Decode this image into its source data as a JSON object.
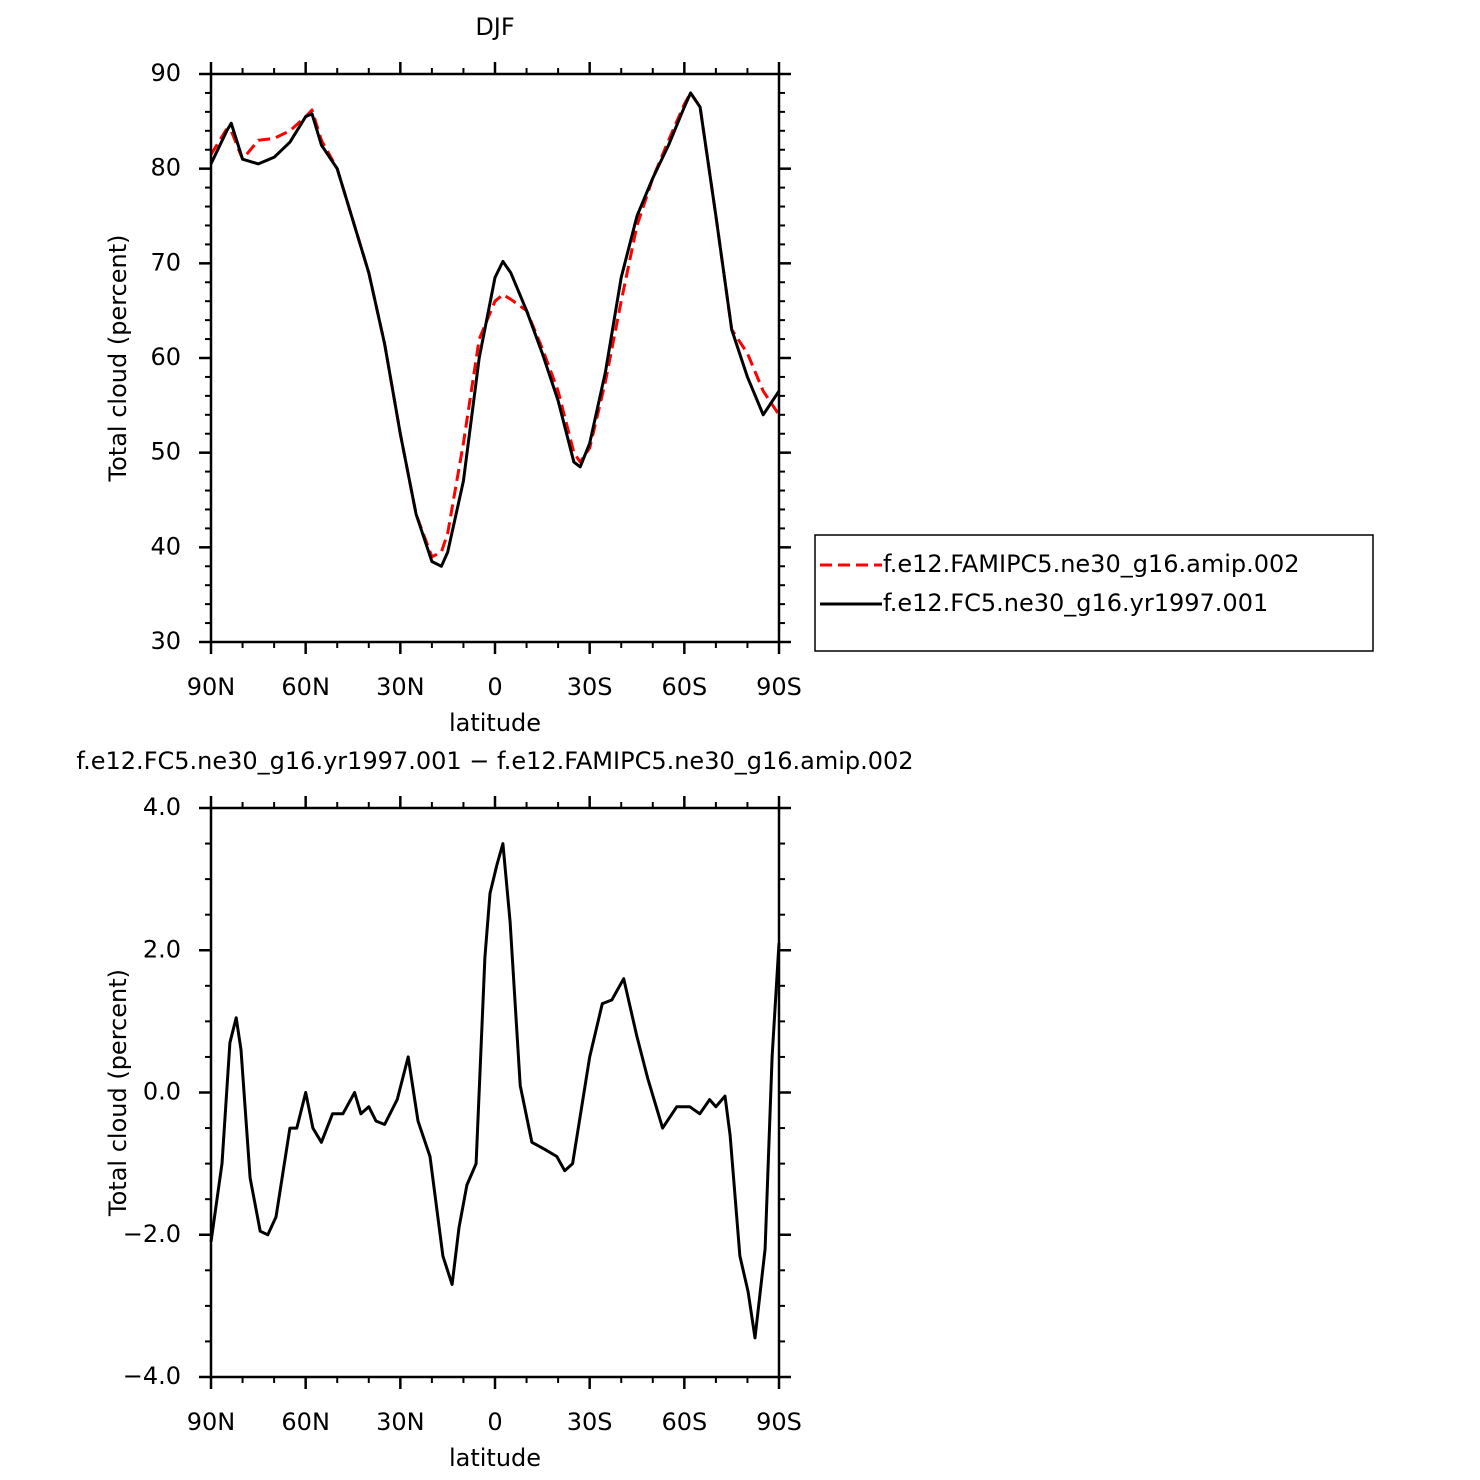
{
  "chart_data": [
    {
      "type": "line",
      "title": "DJF",
      "xlabel": "latitude",
      "ylabel": "Total cloud (percent)",
      "xlim": [
        90,
        -90
      ],
      "ylim": [
        30,
        90
      ],
      "xticks": [
        {
          "value": 90,
          "label": "90N"
        },
        {
          "value": 60,
          "label": "60N"
        },
        {
          "value": 30,
          "label": "30N"
        },
        0,
        {
          "value": -30,
          "label": "30S"
        },
        {
          "value": -60,
          "label": "60S"
        },
        {
          "value": -90,
          "label": "90S"
        }
      ],
      "yticks": [
        30,
        40,
        50,
        60,
        70,
        80,
        90
      ],
      "legend": "right",
      "x": [
        90,
        85,
        83.6,
        80,
        75,
        70,
        65,
        60,
        58,
        55,
        50,
        45,
        40,
        35,
        30,
        25,
        20,
        17,
        15,
        10,
        5,
        0,
        -2.5,
        -5,
        -10,
        -15,
        -20,
        -25,
        -27,
        -30,
        -35,
        -40,
        -45,
        -50,
        -55,
        -60,
        -62,
        -65,
        -70,
        -75,
        -80,
        -85,
        -90
      ],
      "series": [
        {
          "name": "f.e12.FAMIPC5.ne30_g16.amip.002",
          "color": "#ff0000",
          "line_style": "dashed",
          "values": [
            81.5,
            84.2,
            84.0,
            81,
            83,
            83.2,
            84,
            85.5,
            86.2,
            83,
            80,
            74.5,
            69,
            61.5,
            52,
            43.5,
            39,
            39.5,
            41.5,
            51,
            62,
            66,
            66.7,
            66.2,
            65,
            61,
            56.5,
            50,
            49,
            50.5,
            57.5,
            66,
            74,
            79,
            83,
            86.8,
            88,
            86.5,
            75,
            63,
            60.5,
            56.5,
            54
          ]
        },
        {
          "name": "f.e12.FC5.ne30_g16.yr1997.001",
          "color": "#000000",
          "line_style": "solid",
          "values": [
            80.5,
            84.0,
            84.8,
            81,
            80.5,
            81.2,
            82.8,
            85.5,
            85.8,
            82.5,
            80,
            74.5,
            69,
            61.5,
            52,
            43.5,
            38.5,
            38,
            39.5,
            47,
            60,
            68.5,
            70.2,
            69,
            65,
            60.5,
            55.5,
            49,
            48.5,
            51,
            58.5,
            68.5,
            75,
            79,
            82.5,
            86.5,
            88,
            86.5,
            75,
            63,
            58,
            54,
            56.5
          ]
        }
      ]
    },
    {
      "type": "line",
      "title": "f.e12.FC5.ne30_g16.yr1997.001 − f.e12.FAMIPC5.ne30_g16.amip.002",
      "xlabel": "latitude",
      "ylabel": "Total cloud (percent)",
      "xlim": [
        90,
        -90
      ],
      "ylim": [
        -4,
        4
      ],
      "xticks": [
        {
          "value": 90,
          "label": "90N"
        },
        {
          "value": 60,
          "label": "60N"
        },
        {
          "value": 30,
          "label": "30N"
        },
        0,
        {
          "value": -30,
          "label": "30S"
        },
        {
          "value": -60,
          "label": "60S"
        },
        {
          "value": -90,
          "label": "90S"
        }
      ],
      "yticks": [
        {
          "value": -4,
          "label": "−4.0"
        },
        {
          "value": -2,
          "label": "−2.0"
        },
        {
          "value": 0,
          "label": "0.0"
        },
        {
          "value": 2,
          "label": "2.0"
        },
        {
          "value": 4,
          "label": "4.0"
        }
      ],
      "x": [
        90,
        86.5,
        84,
        82,
        80.5,
        77.6,
        74.4,
        72,
        69.4,
        65,
        62.8,
        60,
        57.7,
        55,
        51.5,
        48.2,
        44.5,
        42.5,
        40,
        37.7,
        35,
        31,
        27.5,
        24.4,
        20.6,
        16.5,
        13.6,
        11.4,
        8.9,
        6,
        3.2,
        1.6,
        -0.6,
        -2.5,
        -4.8,
        -8,
        -11.7,
        -15.8,
        -19.6,
        -22.1,
        -24.6,
        -30,
        -34,
        -37,
        -40.8,
        -44.9,
        -48.4,
        -53.1,
        -57.6,
        -61.7,
        -64.9,
        -68,
        -70,
        -72.9,
        -74.5,
        -77.6,
        -80.2,
        -82.4,
        -85.6,
        -87.8,
        -90
      ],
      "series": [
        {
          "color": "#000000",
          "line_style": "solid",
          "values": [
            -2.1,
            -1.0,
            0.7,
            1.05,
            0.6,
            -1.2,
            -1.95,
            -2.0,
            -1.75,
            -0.5,
            -0.5,
            0.0,
            -0.5,
            -0.7,
            -0.3,
            -0.3,
            0.0,
            -0.3,
            -0.2,
            -0.4,
            -0.45,
            -0.1,
            0.5,
            -0.4,
            -0.9,
            -2.3,
            -2.7,
            -1.9,
            -1.3,
            -1.0,
            1.9,
            2.8,
            3.2,
            3.5,
            2.4,
            0.1,
            -0.7,
            -0.8,
            -0.9,
            -1.1,
            -1.0,
            0.5,
            1.25,
            1.3,
            1.6,
            0.8,
            0.2,
            -0.5,
            -0.2,
            -0.2,
            -0.3,
            -0.1,
            -0.2,
            -0.05,
            -0.6,
            -2.3,
            -2.8,
            -3.45,
            -2.2,
            0.5,
            2.1
          ]
        }
      ]
    }
  ]
}
